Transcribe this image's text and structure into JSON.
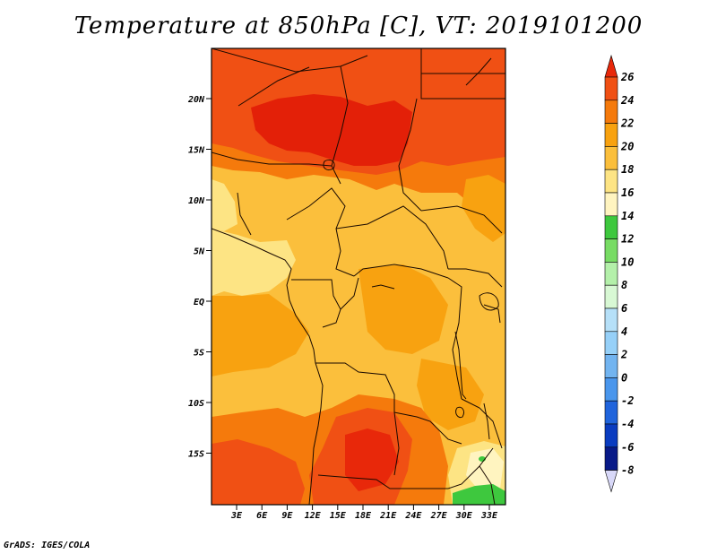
{
  "title": "Temperature at 850hPa [C], VT: 2019101200",
  "credit": "GrADS: IGES/COLA",
  "map": {
    "lat_labels": [
      "20N",
      "15N",
      "10N",
      "5N",
      "EQ",
      "5S",
      "10S",
      "15S"
    ],
    "lon_labels": [
      "3E",
      "6E",
      "9E",
      "12E",
      "15E",
      "18E",
      "21E",
      "24E",
      "27E",
      "30E",
      "33E"
    ]
  },
  "colorbar": {
    "labels": [
      "26",
      "24",
      "22",
      "20",
      "18",
      "16",
      "14",
      "12",
      "10",
      "8",
      "6",
      "4",
      "2",
      "0",
      "-2",
      "-4",
      "-6",
      "-8"
    ],
    "colors": [
      "#e8280a",
      "#f05014",
      "#f57a0c",
      "#f8a210",
      "#fbbf3c",
      "#fde484",
      "#fff4c0",
      "#3ec83e",
      "#78dc64",
      "#b4f0aa",
      "#d8f8d4",
      "#b6e0f8",
      "#96d0f8",
      "#72b4f0",
      "#4a96ec",
      "#2064dc",
      "#0a3cc0",
      "#081a88",
      "#0a0a50"
    ]
  }
}
